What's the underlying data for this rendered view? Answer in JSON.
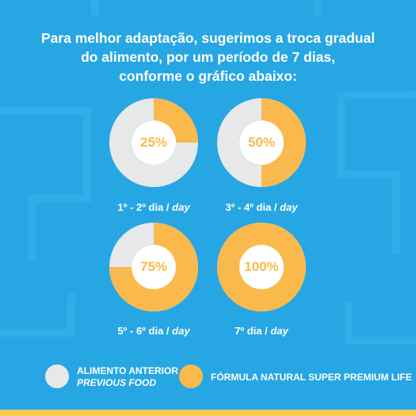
{
  "headline": {
    "line1": "Para melhor adaptação, sugerimos a troca gradual",
    "line2": "do alimento, por um período de 7 dias,",
    "line3": "conforme o gráfico abaixo:"
  },
  "colors": {
    "background": "#27a6e4",
    "previous_food": "#e6e8ea",
    "new_food": "#f9b94d",
    "text": "#ffffff"
  },
  "chart_data": [
    {
      "type": "pie",
      "label": "25%",
      "value": 25,
      "caption_main": "1º - 2º dia / ",
      "caption_em": "day"
    },
    {
      "type": "pie",
      "label": "50%",
      "value": 50,
      "caption_main": "3º - 4º dia / ",
      "caption_em": "day"
    },
    {
      "type": "pie",
      "label": "75%",
      "value": 75,
      "caption_main": "5º - 6º dia / ",
      "caption_em": "day"
    },
    {
      "type": "pie",
      "label": "100%",
      "value": 100,
      "caption_main": "7º dia / ",
      "caption_em": "day"
    }
  ],
  "legend": {
    "previous_line1": "ALIMENTO ANTERIOR",
    "previous_line2": "PREVIOUS FOOD",
    "new": "FÓRMULA NATURAL SUPER PREMIUM LIFE"
  }
}
